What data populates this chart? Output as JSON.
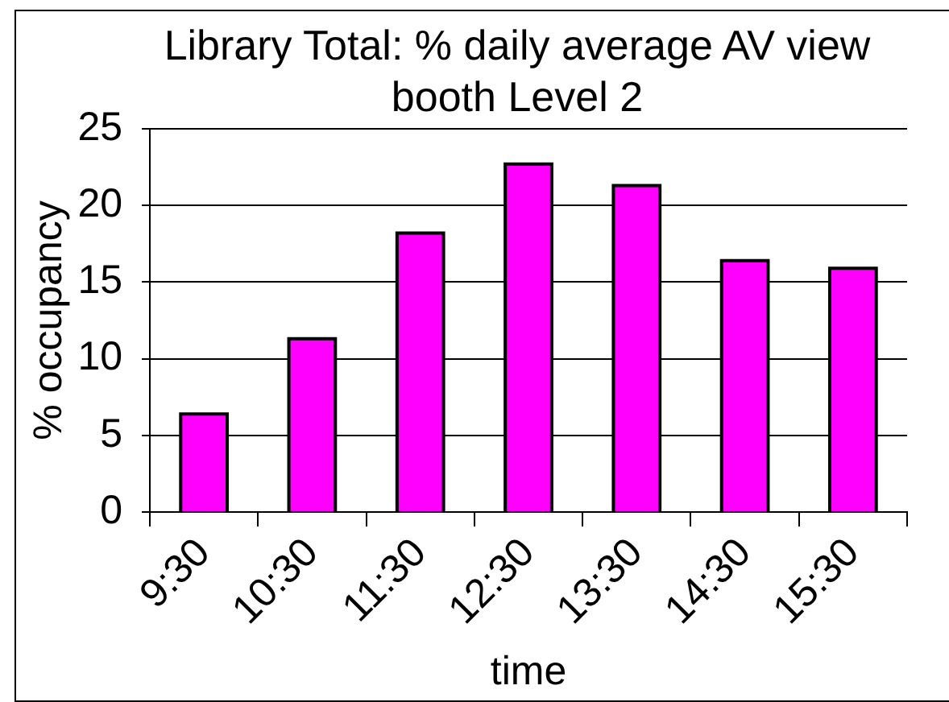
{
  "chart_data": {
    "type": "bar",
    "title": "Library Total: % daily average AV view booth Level 2",
    "xlabel": "time",
    "ylabel": "% occupancy",
    "categories": [
      "9:30",
      "10:30",
      "11:30",
      "12:30",
      "13:30",
      "14:30",
      "15:30"
    ],
    "values": [
      6.4,
      11.3,
      18.2,
      22.7,
      21.3,
      16.4,
      15.9
    ],
    "color": "#ff00ff",
    "ylim": [
      0,
      25
    ],
    "yticks": [
      0,
      5,
      10,
      15,
      20,
      25
    ],
    "grid": "y"
  }
}
